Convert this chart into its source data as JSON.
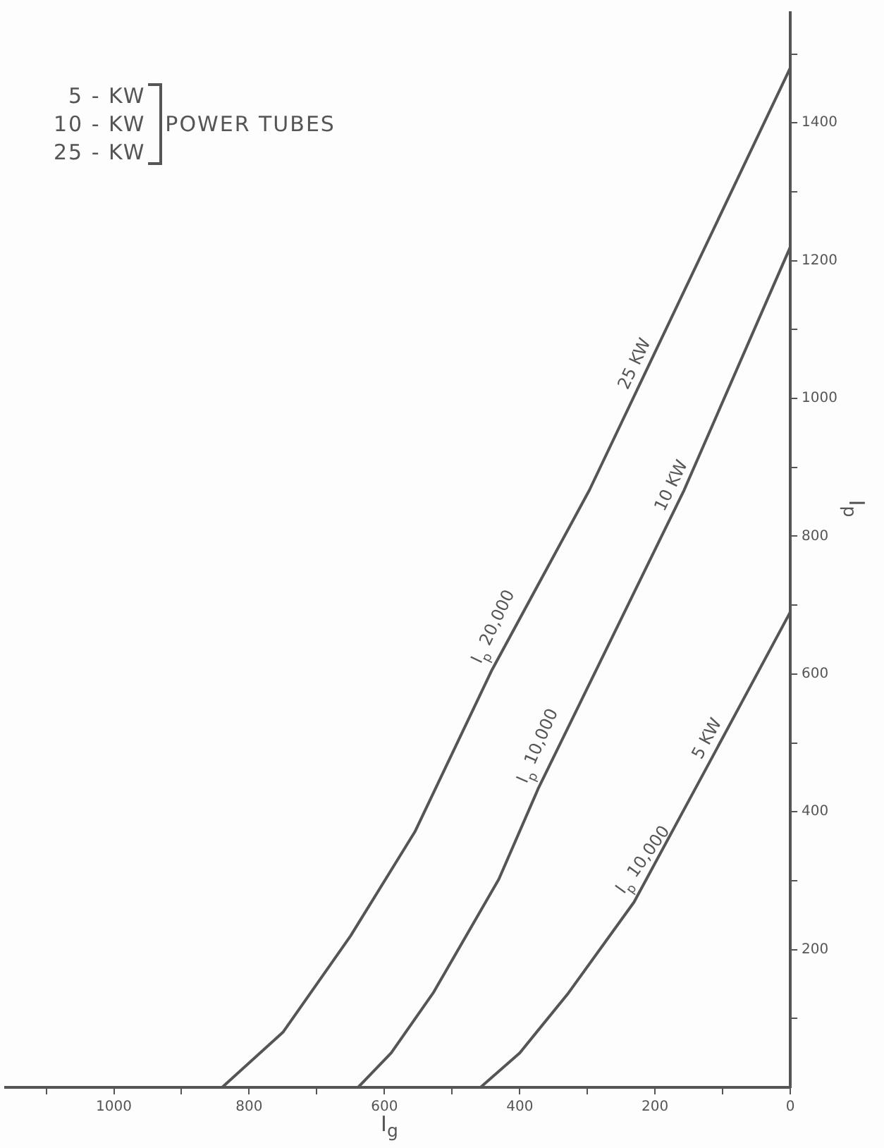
{
  "chart_data": {
    "type": "line",
    "xlabel": "I$_{g}$",
    "ylabel": "I$_{p}$",
    "xlim": [
      1160,
      0
    ],
    "ylim": [
      0,
      1560
    ],
    "xticks": [
      {
        "value": 1100,
        "label": null
      },
      1000,
      {
        "value": 900,
        "label": null
      },
      800,
      {
        "value": 700,
        "label": null
      },
      600,
      {
        "value": 500,
        "label": null
      },
      400,
      {
        "value": 300,
        "label": null
      },
      200,
      {
        "value": 100,
        "label": null
      },
      0
    ],
    "yticks": [
      {
        "value": 100,
        "label": null
      },
      200,
      {
        "value": 300,
        "label": null
      },
      400,
      {
        "value": 500,
        "label": null
      },
      600,
      {
        "value": 700,
        "label": null
      },
      800,
      {
        "value": 900,
        "label": null
      },
      1000,
      {
        "value": 1100,
        "label": null
      },
      1200,
      {
        "value": 1300,
        "label": null
      },
      1400,
      {
        "value": 1500,
        "label": null
      }
    ],
    "series": [
      {
        "name": "25 KW",
        "color": "#555555",
        "x": [
          1160,
          840,
          750,
          650,
          555,
          441,
          297,
          0
        ],
        "values": [
          0,
          0,
          80,
          220,
          371,
          606,
          867,
          1480
        ]
      },
      {
        "name": "10 KW",
        "color": "#555555",
        "x": [
          639,
          590,
          528,
          431,
          373,
          157,
          0
        ],
        "values": [
          0,
          50,
          137,
          302,
          433,
          867,
          1220
        ]
      },
      {
        "name": "5 KW",
        "color": "#555555",
        "x": [
          458,
          400,
          328,
          231,
          115,
          0
        ],
        "values": [
          0,
          50,
          137,
          269,
          480,
          690
        ]
      }
    ],
    "annotations": [
      "5 - KW",
      "10 - KW",
      "25 - KW",
      "POWER TUBES",
      {
        "text": "I$_{p}$ 20,000",
        "x": 441,
        "y": 606
      },
      {
        "text": "I$_{p}$ 10,000",
        "x": 373,
        "y": 433
      },
      {
        "text": "I$_{p}$ 10,000",
        "x": 231,
        "y": 269
      }
    ],
    "grid": false,
    "legend": false,
    "marker": "none",
    "line_style": "solid"
  }
}
